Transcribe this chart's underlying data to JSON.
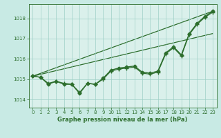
{
  "background_color": "#c8eae4",
  "plot_bg_color": "#daf0eb",
  "grid_color": "#9ecfc6",
  "line_color": "#2d6e2d",
  "title": "Graphe pression niveau de la mer (hPa)",
  "xlim": [
    -0.5,
    23.5
  ],
  "ylim": [
    1013.6,
    1018.7
  ],
  "yticks": [
    1014,
    1015,
    1016,
    1017,
    1018
  ],
  "xticks": [
    0,
    1,
    2,
    3,
    4,
    5,
    6,
    7,
    8,
    9,
    10,
    11,
    12,
    13,
    14,
    15,
    16,
    17,
    18,
    19,
    20,
    21,
    22,
    23
  ],
  "line_straight1": {
    "x": [
      0,
      23
    ],
    "y": [
      1015.15,
      1018.35
    ],
    "linewidth": 0.9
  },
  "line_straight2": {
    "x": [
      0,
      23
    ],
    "y": [
      1015.15,
      1017.25
    ],
    "linewidth": 0.9
  },
  "line_diamond": {
    "x": [
      0,
      1,
      2,
      3,
      4,
      5,
      6,
      7,
      8,
      9,
      10,
      11,
      12,
      13,
      14,
      15,
      16,
      17,
      18,
      19,
      20,
      21,
      22,
      23
    ],
    "y": [
      1015.15,
      1015.1,
      1014.75,
      1014.9,
      1014.75,
      1014.75,
      1014.3,
      1014.8,
      1014.75,
      1015.05,
      1015.45,
      1015.55,
      1015.6,
      1015.65,
      1015.35,
      1015.3,
      1015.4,
      1016.3,
      1016.6,
      1016.2,
      1017.25,
      1017.75,
      1018.1,
      1018.35
    ],
    "marker": "D",
    "markersize": 2.5,
    "linewidth": 1.0
  },
  "line_cross": {
    "x": [
      0,
      1,
      2,
      3,
      4,
      5,
      6,
      7,
      8,
      9,
      10,
      11,
      12,
      13,
      14,
      15,
      16,
      17,
      18,
      19,
      20,
      21,
      22,
      23
    ],
    "y": [
      1015.15,
      1015.1,
      1014.8,
      1014.9,
      1014.8,
      1014.75,
      1014.35,
      1014.8,
      1014.75,
      1015.0,
      1015.4,
      1015.5,
      1015.55,
      1015.6,
      1015.3,
      1015.25,
      1015.35,
      1016.25,
      1016.55,
      1016.15,
      1017.2,
      1017.7,
      1018.05,
      1018.3
    ],
    "marker": "+",
    "markersize": 4,
    "linewidth": 0.9
  }
}
